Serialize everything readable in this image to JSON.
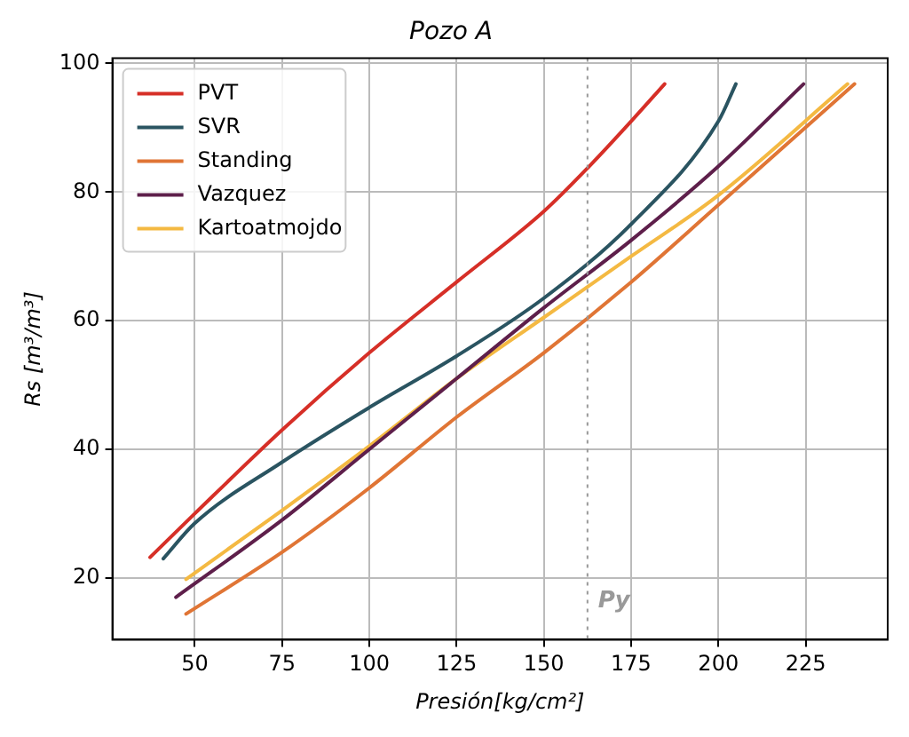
{
  "chart_data": {
    "type": "line",
    "title": "Pozo A",
    "xlabel": "Presión[kg/cm²]",
    "ylabel": "Rs [m³/m³]",
    "xlim": [
      26.4,
      248.5
    ],
    "ylim": [
      10.4,
      100.8
    ],
    "xticks": [
      50,
      75,
      100,
      125,
      150,
      175,
      200,
      225
    ],
    "yticks": [
      20,
      40,
      60,
      80,
      100
    ],
    "grid": true,
    "legend": "top left",
    "marker": "none",
    "line_style": "solid",
    "ref_lines": [
      {
        "axis": "x",
        "value": 162.5,
        "label": "Py",
        "color": "#999999",
        "line_style": "dotted"
      }
    ],
    "series": [
      {
        "name": "PVT",
        "color": "#d62f27",
        "x": [
          37.2,
          50,
          75,
          100,
          125,
          150,
          163,
          175,
          184.6
        ],
        "values": [
          23.2,
          30,
          43,
          55,
          66,
          77,
          84,
          91,
          96.8
        ]
      },
      {
        "name": "SVR",
        "color": "#2a5461",
        "x": [
          41,
          50,
          75,
          100,
          125,
          150,
          175,
          200,
          205
        ],
        "values": [
          23,
          28.5,
          38,
          46.5,
          54.5,
          63.5,
          75,
          91,
          96.8
        ]
      },
      {
        "name": "Standing",
        "color": "#e07535",
        "x": [
          47.5,
          75,
          100,
          125,
          150,
          175,
          200,
          239
        ],
        "values": [
          14.4,
          24,
          34,
          45,
          55,
          66,
          78,
          96.8
        ]
      },
      {
        "name": "Vazquez",
        "color": "#5e1f4b",
        "x": [
          44.6,
          75,
          100,
          125,
          150,
          175,
          200,
          224.4
        ],
        "values": [
          17,
          29,
          40,
          51,
          62,
          72.5,
          84,
          96.8
        ]
      },
      {
        "name": "Kartoatmojdo",
        "color": "#f4b942",
        "x": [
          47.5,
          75,
          100,
          125,
          150,
          175,
          200,
          237
        ],
        "values": [
          19.8,
          30.5,
          40.5,
          51,
          60.5,
          70,
          79.5,
          96.8
        ]
      }
    ]
  }
}
